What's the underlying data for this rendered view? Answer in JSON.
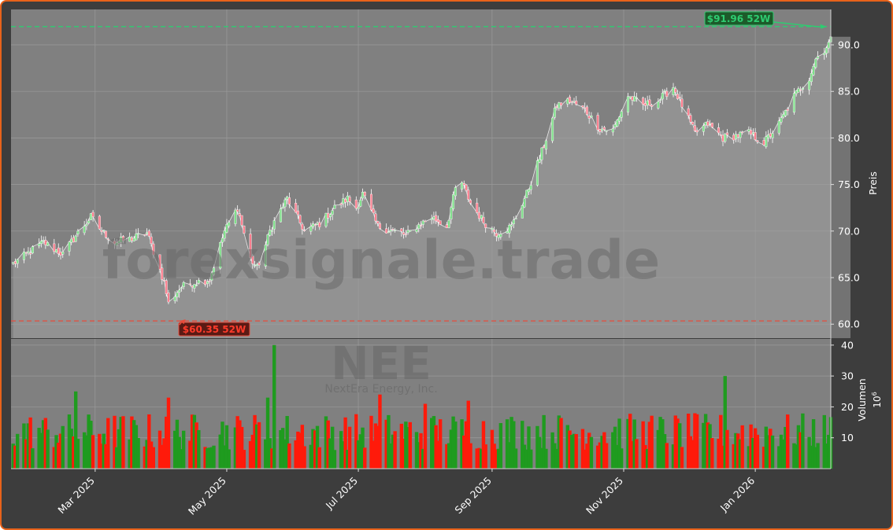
{
  "ticker": "NEE",
  "company": "NextEra Energy, Inc.",
  "watermark": "forexsignale.trade",
  "colors": {
    "frame": "#e8621a",
    "background": "#3d3d3d",
    "plot_area": "#808080",
    "up": "#1f9b1f",
    "down": "#ff1a0a",
    "high_line": "#2ecc71",
    "low_line": "#e74c3c"
  },
  "chart_data": [
    {
      "type": "candlestick",
      "panel": "price",
      "ylabel": "Preis",
      "ylim": [
        58.5,
        93.8
      ],
      "yticks": [
        60.0,
        65.0,
        70.0,
        75.0,
        80.0,
        85.0,
        90.0
      ],
      "xlim": [
        "2025-01-21",
        "2026-02-05"
      ],
      "xticks": [
        "2025-03-01",
        "2025-05-01",
        "2025-07-01",
        "2025-09-01",
        "2025-11-01",
        "2026-01-01"
      ],
      "xtick_labels": [
        "Mar 2025",
        "May 2025",
        "Jul 2025",
        "Sep 2025",
        "Nov 2025",
        "Jan 2026"
      ],
      "grid": true,
      "close_series": {
        "dates": [
          "2025-01-22",
          "2025-02-05",
          "2025-02-14",
          "2025-02-20",
          "2025-02-27",
          "2025-03-04",
          "2025-03-10",
          "2025-03-18",
          "2025-03-25",
          "2025-03-31",
          "2025-04-02",
          "2025-04-04",
          "2025-04-08",
          "2025-04-10",
          "2025-04-16",
          "2025-04-23",
          "2025-04-30",
          "2025-05-06",
          "2025-05-12",
          "2025-05-15",
          "2025-05-19",
          "2025-05-21",
          "2025-05-23",
          "2025-05-29",
          "2025-06-06",
          "2025-06-13",
          "2025-06-20",
          "2025-06-26",
          "2025-06-30",
          "2025-07-03",
          "2025-07-10",
          "2025-07-17",
          "2025-07-21",
          "2025-07-23",
          "2025-07-28",
          "2025-08-04",
          "2025-08-11",
          "2025-08-15",
          "2025-08-18",
          "2025-08-22",
          "2025-08-28",
          "2025-09-03",
          "2025-09-10",
          "2025-09-17",
          "2025-09-24",
          "2025-10-01",
          "2025-10-07",
          "2025-10-14",
          "2025-10-21",
          "2025-10-27",
          "2025-11-03",
          "2025-11-10",
          "2025-11-17",
          "2025-11-24",
          "2025-12-01",
          "2025-12-04",
          "2025-12-10",
          "2025-12-17",
          "2025-12-22",
          "2025-12-29",
          "2026-01-05",
          "2026-01-12",
          "2026-01-19",
          "2026-01-26",
          "2026-01-29",
          "2026-02-02",
          "2026-02-05"
        ],
        "values": [
          66.5,
          68.8,
          67.5,
          69.5,
          71.5,
          70.0,
          68.8,
          69.2,
          69.8,
          65.8,
          64.5,
          62.2,
          63.5,
          64.0,
          64.5,
          64.8,
          70.0,
          72.5,
          67.0,
          66.0,
          68.5,
          70.0,
          71.0,
          73.5,
          70.0,
          70.8,
          72.5,
          73.5,
          72.5,
          74.0,
          70.5,
          70.0,
          69.8,
          69.5,
          70.5,
          71.5,
          70.5,
          74.5,
          75.2,
          73.0,
          71.0,
          69.8,
          70.5,
          74.0,
          78.5,
          83.5,
          84.0,
          83.0,
          81.0,
          80.8,
          84.5,
          83.5,
          84.0,
          85.5,
          82.0,
          80.5,
          81.5,
          80.0,
          80.2,
          80.5,
          79.5,
          81.5,
          84.5,
          86.5,
          88.5,
          89.5,
          90.5
        ]
      },
      "annotations": [
        {
          "label": "$91.96 52W",
          "value": 91.96,
          "date": "2026-02-03"
        },
        {
          "label": "$60.35 52W",
          "value": 60.35,
          "date": "2025-04-09"
        }
      ]
    },
    {
      "type": "bar",
      "panel": "volume",
      "ylabel": "Volumen",
      "unit": "10",
      "unit_exponent": "6",
      "ylim": [
        0,
        42
      ],
      "yticks": [
        10,
        20,
        30,
        40
      ],
      "approx_values_millions": {
        "typical_range": [
          6,
          18
        ],
        "peaks": [
          {
            "date": "2025-02-20",
            "value": 25
          },
          {
            "date": "2025-04-04",
            "value": 23
          },
          {
            "date": "2025-05-20",
            "value": 23
          },
          {
            "date": "2025-05-23",
            "value": 40
          },
          {
            "date": "2025-07-11",
            "value": 24
          },
          {
            "date": "2025-08-01",
            "value": 21
          },
          {
            "date": "2025-08-21",
            "value": 22
          },
          {
            "date": "2025-12-18",
            "value": 30
          }
        ]
      }
    }
  ]
}
